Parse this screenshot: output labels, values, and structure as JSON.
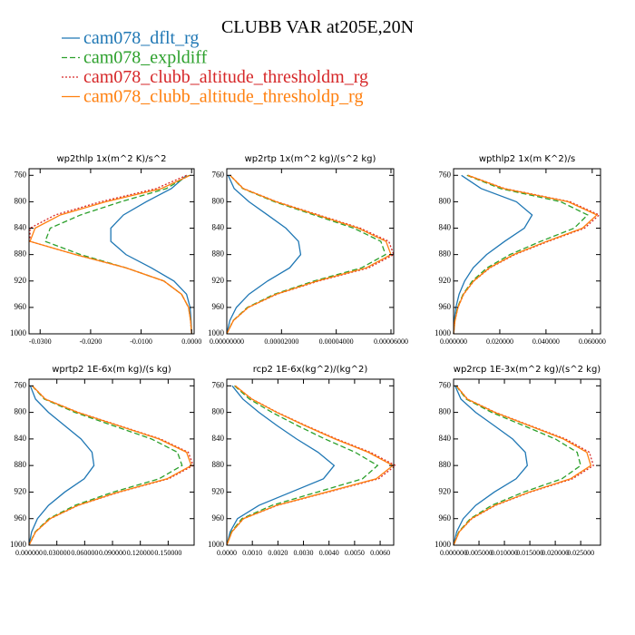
{
  "title": "CLUBB VAR at205E,20N",
  "legend": [
    {
      "name": "cam078_dflt_rg",
      "color": "#1f77b4",
      "dash": "none"
    },
    {
      "name": "cam078_expldiff",
      "color": "#2ca02c",
      "dash": "6,3"
    },
    {
      "name": "cam078_clubb_altitude_thresholdm_rg",
      "color": "#d62728",
      "dash": "2,2"
    },
    {
      "name": "cam078_clubb_altitude_thresholdp_rg",
      "color": "#ff7f0e",
      "dash": "none"
    }
  ],
  "chart_data": [
    {
      "type": "line",
      "title": "wp2thlp  1x(m^2 K)/s^2",
      "levels": [
        760,
        780,
        800,
        820,
        840,
        860,
        880,
        900,
        920,
        940,
        960,
        980,
        1000
      ],
      "ylim": [
        1000,
        750
      ],
      "yticks": [
        760,
        800,
        840,
        880,
        920,
        960,
        1000
      ],
      "xlim": [
        -0.0322,
        0.0005
      ],
      "xticks": [
        {
          "value": -0.03,
          "label": "-0.0300"
        },
        {
          "value": -0.02,
          "label": "-0.0200"
        },
        {
          "value": -0.01,
          "label": "-0.0100"
        },
        {
          "value": 0,
          "label": "0.0000"
        }
      ],
      "series": [
        {
          "values": [
            -0.001,
            -0.004,
            -0.009,
            -0.0135,
            -0.016,
            -0.016,
            -0.013,
            -0.008,
            -0.0035,
            -0.001,
            -0.0003,
            -0.0001,
            0
          ]
        },
        {
          "values": [
            -0.0005,
            -0.005,
            -0.014,
            -0.022,
            -0.028,
            -0.029,
            -0.022,
            -0.013,
            -0.0055,
            -0.002,
            -0.0006,
            -0.0002,
            0
          ]
        },
        {
          "values": [
            -0.001,
            -0.007,
            -0.018,
            -0.027,
            -0.032,
            -0.032,
            -0.023,
            -0.013,
            -0.0055,
            -0.002,
            -0.0006,
            -0.0002,
            0
          ]
        },
        {
          "values": [
            -0.0003,
            -0.006,
            -0.017,
            -0.026,
            -0.031,
            -0.032,
            -0.023,
            -0.013,
            -0.0055,
            -0.002,
            -0.0006,
            -0.0002,
            0
          ]
        }
      ]
    },
    {
      "type": "line",
      "title": "wp2rtp  1x(m^2 kg)/(s^2 kg)",
      "levels": [
        760,
        780,
        800,
        820,
        840,
        860,
        880,
        900,
        920,
        940,
        960,
        980,
        1000
      ],
      "ylim": [
        1000,
        750
      ],
      "yticks": [
        760,
        800,
        840,
        880,
        920,
        960,
        1000
      ],
      "xlim": [
        0,
        6.1e-05
      ],
      "xticks": [
        {
          "value": 0,
          "label": "0.00000000"
        },
        {
          "value": 2e-05,
          "label": "0.00002000"
        },
        {
          "value": 4e-05,
          "label": "0.00004000"
        },
        {
          "value": 6e-05,
          "label": "0.00006000"
        }
      ],
      "series": [
        {
          "values": [
            5e-07,
            2.7e-06,
            8.1e-06,
            1.49e-05,
            2.16e-05,
            2.62e-05,
            2.7e-05,
            2.3e-05,
            1.49e-05,
            8.1e-06,
            3.5e-06,
            1.1e-06,
            0
          ]
        },
        {
          "values": [
            1.2e-06,
            5.8e-06,
            1.74e-05,
            3.19e-05,
            4.64e-05,
            5.63e-05,
            5.8e-05,
            4.93e-05,
            3.19e-05,
            1.74e-05,
            7.5e-06,
            2.3e-06,
            0
          ]
        },
        {
          "values": [
            1.2e-06,
            6.1e-06,
            1.83e-05,
            3.36e-05,
            4.88e-05,
            5.92e-05,
            6.1e-05,
            5.19e-05,
            3.36e-05,
            1.83e-05,
            7.9e-06,
            2.4e-06,
            0
          ]
        },
        {
          "values": [
            1.2e-06,
            6e-06,
            1.8e-05,
            3.3e-05,
            4.8e-05,
            5.82e-05,
            6e-05,
            5.1e-05,
            3.3e-05,
            1.8e-05,
            7.8e-06,
            2.4e-06,
            0
          ]
        }
      ]
    },
    {
      "type": "line",
      "title": "wpthlp2  1x(m K^2)/s",
      "levels": [
        760,
        780,
        800,
        820,
        840,
        860,
        880,
        900,
        920,
        940,
        960,
        980,
        1000
      ],
      "ylim": [
        1000,
        750
      ],
      "yticks": [
        760,
        800,
        840,
        880,
        920,
        960,
        1000
      ],
      "xlim": [
        0,
        0.0636
      ],
      "xticks": [
        {
          "value": 0,
          "label": "0.000000"
        },
        {
          "value": 0.02,
          "label": "0.020000"
        },
        {
          "value": 0.04,
          "label": "0.040000"
        },
        {
          "value": 0.06,
          "label": "0.060000"
        }
      ],
      "series": [
        {
          "values": [
            0.0034,
            0.0119,
            0.0272,
            0.034,
            0.0306,
            0.0221,
            0.0143,
            0.0085,
            0.0048,
            0.0024,
            0.001,
            0.0003,
            0
          ]
        },
        {
          "values": [
            0.0058,
            0.0203,
            0.0464,
            0.058,
            0.0522,
            0.0377,
            0.0244,
            0.0145,
            0.0081,
            0.0041,
            0.0017,
            0.0006,
            0
          ]
        },
        {
          "values": [
            0.0063,
            0.0221,
            0.0504,
            0.063,
            0.0567,
            0.041,
            0.0265,
            0.0158,
            0.0088,
            0.0044,
            0.0019,
            0.0006,
            0
          ]
        },
        {
          "values": [
            0.0062,
            0.0217,
            0.0496,
            0.062,
            0.0558,
            0.0403,
            0.026,
            0.0155,
            0.0087,
            0.0043,
            0.0019,
            0.0006,
            0
          ]
        }
      ]
    },
    {
      "type": "line",
      "title": "wprtp2  1E-6x(m kg)/(s kg)",
      "levels": [
        760,
        780,
        800,
        820,
        840,
        860,
        880,
        900,
        920,
        940,
        960,
        980,
        1000
      ],
      "ylim": [
        1000,
        750
      ],
      "yticks": [
        760,
        800,
        840,
        880,
        920,
        960,
        1000
      ],
      "xlim": [
        0,
        0.178
      ],
      "xticks": [
        {
          "value": 0,
          "label": "0.000000"
        },
        {
          "value": 0.03,
          "label": "0.030000"
        },
        {
          "value": 0.06,
          "label": "0.060000"
        },
        {
          "value": 0.09,
          "label": "0.090000"
        },
        {
          "value": 0.12,
          "label": "0.120000"
        },
        {
          "value": 0.15,
          "label": "0.150000"
        }
      ],
      "series": [
        {
          "values": [
            0.0014,
            0.007,
            0.021,
            0.0385,
            0.056,
            0.0679,
            0.07,
            0.0595,
            0.0385,
            0.021,
            0.0091,
            0.0028,
            0
          ]
        },
        {
          "values": [
            0.0033,
            0.0165,
            0.0495,
            0.0908,
            0.132,
            0.16,
            0.165,
            0.1403,
            0.0908,
            0.0495,
            0.0215,
            0.0066,
            0
          ]
        },
        {
          "values": [
            0.0035,
            0.0177,
            0.0531,
            0.0974,
            0.1416,
            0.1717,
            0.177,
            0.1505,
            0.0974,
            0.0531,
            0.023,
            0.0071,
            0
          ]
        },
        {
          "values": [
            0.0035,
            0.0175,
            0.0525,
            0.0963,
            0.14,
            0.1698,
            0.175,
            0.1488,
            0.0963,
            0.0525,
            0.0228,
            0.007,
            0
          ]
        }
      ]
    },
    {
      "type": "line",
      "title": "rcp2  1E-6x(kg^2)/(kg^2)",
      "levels": [
        760,
        780,
        800,
        820,
        840,
        860,
        880,
        900,
        920,
        940,
        960,
        980,
        1000
      ],
      "ylim": [
        1000,
        750
      ],
      "yticks": [
        760,
        800,
        840,
        880,
        920,
        960,
        1000
      ],
      "xlim": [
        0,
        0.00653
      ],
      "xticks": [
        {
          "value": 0,
          "label": "0.0000"
        },
        {
          "value": 0.001,
          "label": "0.0010"
        },
        {
          "value": 0.002,
          "label": "0.0020"
        },
        {
          "value": 0.003,
          "label": "0.0030"
        },
        {
          "value": 0.004,
          "label": "0.0040"
        },
        {
          "value": 0.005,
          "label": "0.0050"
        },
        {
          "value": 0.006,
          "label": "0.0060"
        }
      ],
      "series": [
        {
          "values": [
            0.00021,
            0.00063,
            0.00126,
            0.00197,
            0.00273,
            0.00357,
            0.0042,
            0.00378,
            0.00252,
            0.00126,
            0.00042,
            0.00013,
            0
          ]
        },
        {
          "values": [
            0.0003,
            0.00089,
            0.00177,
            0.00277,
            0.00384,
            0.00502,
            0.0059,
            0.00531,
            0.00354,
            0.00177,
            0.00059,
            0.00018,
            0
          ]
        },
        {
          "values": [
            0.00033,
            0.00099,
            0.00198,
            0.0031,
            0.00429,
            0.00561,
            0.0066,
            0.00594,
            0.00396,
            0.00198,
            0.00066,
            0.0002,
            0
          ]
        },
        {
          "values": [
            0.00033,
            0.00098,
            0.00195,
            0.00306,
            0.00423,
            0.00553,
            0.0065,
            0.00585,
            0.0039,
            0.00195,
            0.00065,
            0.0002,
            0
          ]
        }
      ]
    },
    {
      "type": "line",
      "title": "wp2rcp  1E-3x(m^2 kg)/(s^2 kg)",
      "levels": [
        760,
        780,
        800,
        820,
        840,
        860,
        880,
        900,
        920,
        940,
        960,
        980,
        1000
      ],
      "ylim": [
        1000,
        750
      ],
      "yticks": [
        760,
        800,
        840,
        880,
        920,
        960,
        1000
      ],
      "xlim": [
        0,
        0.0289
      ],
      "xticks": [
        {
          "value": 0,
          "label": "0.000000"
        },
        {
          "value": 0.005,
          "label": "0.005000"
        },
        {
          "value": 0.01,
          "label": "0.010000"
        },
        {
          "value": 0.015,
          "label": "0.015000"
        },
        {
          "value": 0.02,
          "label": "0.020000"
        },
        {
          "value": 0.025,
          "label": "0.025000"
        }
      ],
      "series": [
        {
          "values": [
            0.0003,
            0.00145,
            0.00435,
            0.008,
            0.0116,
            0.0141,
            0.0145,
            0.0123,
            0.008,
            0.00435,
            0.0019,
            0.0006,
            0
          ]
        },
        {
          "values": [
            0.0005,
            0.0025,
            0.0075,
            0.0138,
            0.02,
            0.0243,
            0.025,
            0.0213,
            0.0138,
            0.0075,
            0.0033,
            0.001,
            0
          ]
        },
        {
          "values": [
            0.00055,
            0.00275,
            0.00825,
            0.0151,
            0.022,
            0.0267,
            0.0275,
            0.0234,
            0.0151,
            0.00825,
            0.0036,
            0.0011,
            0
          ]
        },
        {
          "values": [
            0.00054,
            0.0027,
            0.0081,
            0.0149,
            0.0216,
            0.0262,
            0.027,
            0.023,
            0.0149,
            0.0081,
            0.0035,
            0.0011,
            0
          ]
        }
      ]
    }
  ]
}
